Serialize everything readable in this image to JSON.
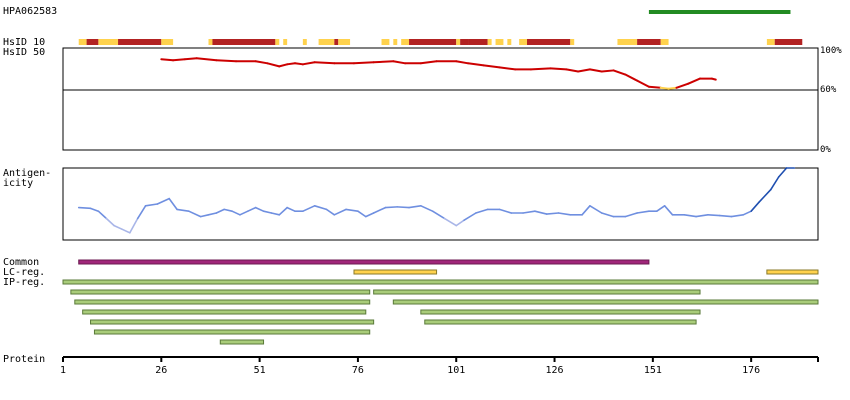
{
  "antibody_id": "HPA062583",
  "labels": {
    "hsid10": "HsID 10",
    "hsid50": "HsID 50",
    "antigenicity_line1": "Antigen-",
    "antigenicity_line2": "icity",
    "common": "Common",
    "lc_reg": "LC-reg.",
    "ip_reg": "IP-reg.",
    "protein": "Protein"
  },
  "identity_axis_labels": [
    "100%",
    "60%",
    "0%"
  ],
  "colors": {
    "antigen_bar": "#228b22",
    "identity_high": "#b22222",
    "identity_mid": "#ff6347",
    "identity_low": "#ffd24d",
    "identity_line": "#cc0000",
    "antigenicity_line": "#6f8fe0",
    "antigenicity_peak": "#1f4fb0",
    "common_bar": "#a0267a",
    "lc_bar": "#ffd24d",
    "ip_bar": "#a9cc7a"
  },
  "chart_data": {
    "type": "line",
    "x_axis": {
      "label": "Protein",
      "min": 1,
      "max": 193,
      "ticks": [
        1,
        26,
        51,
        76,
        101,
        126,
        151,
        176
      ]
    },
    "antigen_region": [
      150,
      186
    ],
    "identity_strip": [
      [
        5,
        7,
        "low"
      ],
      [
        7,
        10,
        "high"
      ],
      [
        10,
        15,
        "low"
      ],
      [
        15,
        26,
        "high"
      ],
      [
        26,
        29,
        "low"
      ],
      [
        38,
        39,
        "low"
      ],
      [
        39,
        55,
        "high"
      ],
      [
        55,
        56,
        "low"
      ],
      [
        57,
        58,
        "low"
      ],
      [
        62,
        63,
        "low"
      ],
      [
        66,
        70,
        "low"
      ],
      [
        70,
        71,
        "high"
      ],
      [
        71,
        74,
        "low"
      ],
      [
        82,
        84,
        "low"
      ],
      [
        85,
        86,
        "low"
      ],
      [
        87,
        89,
        "low"
      ],
      [
        89,
        101,
        "high"
      ],
      [
        101,
        102,
        "low"
      ],
      [
        102,
        104,
        "high"
      ],
      [
        104,
        109,
        "high"
      ],
      [
        109,
        110,
        "low"
      ],
      [
        111,
        113,
        "low"
      ],
      [
        114,
        115,
        "low"
      ],
      [
        117,
        119,
        "low"
      ],
      [
        119,
        130,
        "high"
      ],
      [
        130,
        131,
        "low"
      ],
      [
        142,
        147,
        "low"
      ],
      [
        147,
        153,
        "high"
      ],
      [
        153,
        155,
        "low"
      ],
      [
        180,
        182,
        "low"
      ],
      [
        182,
        189,
        "high"
      ]
    ],
    "identity_series": {
      "name": "HsID",
      "ylim": [
        0,
        100
      ],
      "hline": 60,
      "points": [
        [
          26,
          89
        ],
        [
          29,
          88
        ],
        [
          32,
          89
        ],
        [
          35,
          90
        ],
        [
          40,
          88
        ],
        [
          45,
          87
        ],
        [
          50,
          87
        ],
        [
          53,
          85
        ],
        [
          56,
          82
        ],
        [
          58,
          84
        ],
        [
          60,
          85
        ],
        [
          62,
          84
        ],
        [
          65,
          86
        ],
        [
          70,
          85
        ],
        [
          75,
          85
        ],
        [
          80,
          86
        ],
        [
          85,
          87
        ],
        [
          88,
          85
        ],
        [
          92,
          85
        ],
        [
          96,
          87
        ],
        [
          101,
          87
        ],
        [
          104,
          85
        ],
        [
          108,
          83
        ],
        [
          112,
          81
        ],
        [
          116,
          79
        ],
        [
          120,
          79
        ],
        [
          125,
          80
        ],
        [
          129,
          79
        ],
        [
          132,
          77
        ],
        [
          135,
          79
        ],
        [
          138,
          77
        ],
        [
          141,
          78
        ],
        [
          144,
          74
        ],
        [
          147,
          68
        ],
        [
          150,
          62
        ],
        [
          153,
          61
        ],
        [
          155,
          60
        ],
        [
          157,
          61
        ],
        [
          160,
          65
        ],
        [
          163,
          70
        ],
        [
          166,
          70
        ],
        [
          167,
          69
        ]
      ],
      "low_range": [
        154,
        158
      ]
    },
    "antigenicity_series": {
      "name": "Antigenicity",
      "ylim": [
        -1,
        1
      ],
      "points": [
        [
          5,
          -0.1
        ],
        [
          8,
          -0.12
        ],
        [
          10,
          -0.2
        ],
        [
          12,
          -0.4
        ],
        [
          14,
          -0.6
        ],
        [
          16,
          -0.7
        ],
        [
          18,
          -0.8
        ],
        [
          20,
          -0.4
        ],
        [
          22,
          -0.05
        ],
        [
          25,
          0.0
        ],
        [
          28,
          0.15
        ],
        [
          30,
          -0.15
        ],
        [
          33,
          -0.2
        ],
        [
          36,
          -0.35
        ],
        [
          38,
          -0.3
        ],
        [
          40,
          -0.25
        ],
        [
          42,
          -0.15
        ],
        [
          44,
          -0.2
        ],
        [
          46,
          -0.3
        ],
        [
          48,
          -0.2
        ],
        [
          50,
          -0.1
        ],
        [
          52,
          -0.2
        ],
        [
          54,
          -0.25
        ],
        [
          56,
          -0.3
        ],
        [
          58,
          -0.1
        ],
        [
          60,
          -0.2
        ],
        [
          62,
          -0.2
        ],
        [
          65,
          -0.05
        ],
        [
          68,
          -0.15
        ],
        [
          70,
          -0.3
        ],
        [
          73,
          -0.15
        ],
        [
          76,
          -0.2
        ],
        [
          78,
          -0.35
        ],
        [
          80,
          -0.25
        ],
        [
          83,
          -0.1
        ],
        [
          86,
          -0.08
        ],
        [
          89,
          -0.1
        ],
        [
          92,
          -0.05
        ],
        [
          95,
          -0.2
        ],
        [
          98,
          -0.4
        ],
        [
          101,
          -0.6
        ],
        [
          103,
          -0.45
        ],
        [
          106,
          -0.25
        ],
        [
          109,
          -0.15
        ],
        [
          112,
          -0.15
        ],
        [
          115,
          -0.25
        ],
        [
          118,
          -0.25
        ],
        [
          121,
          -0.2
        ],
        [
          124,
          -0.28
        ],
        [
          127,
          -0.25
        ],
        [
          130,
          -0.3
        ],
        [
          133,
          -0.3
        ],
        [
          135,
          -0.05
        ],
        [
          138,
          -0.25
        ],
        [
          141,
          -0.35
        ],
        [
          144,
          -0.35
        ],
        [
          147,
          -0.25
        ],
        [
          150,
          -0.2
        ],
        [
          152,
          -0.2
        ],
        [
          154,
          -0.05
        ],
        [
          156,
          -0.3
        ],
        [
          159,
          -0.3
        ],
        [
          162,
          -0.35
        ],
        [
          165,
          -0.3
        ],
        [
          168,
          -0.32
        ],
        [
          171,
          -0.35
        ],
        [
          174,
          -0.3
        ],
        [
          176,
          -0.2
        ],
        [
          178,
          0.05
        ],
        [
          181,
          0.4
        ],
        [
          183,
          0.75
        ],
        [
          185,
          1.0
        ],
        [
          187,
          1.0
        ]
      ],
      "peak_from": 176
    },
    "common": [
      [
        5,
        150
      ]
    ],
    "lc_reg": [
      [
        75,
        96
      ],
      [
        180,
        193
      ]
    ],
    "ip_reg": [
      [
        1,
        193
      ],
      [
        3,
        79
      ],
      [
        80,
        163
      ],
      [
        4,
        79
      ],
      [
        85,
        193
      ],
      [
        6,
        78
      ],
      [
        92,
        163
      ],
      [
        8,
        80
      ],
      [
        93,
        162
      ],
      [
        9,
        79
      ],
      [
        41,
        52
      ]
    ]
  }
}
